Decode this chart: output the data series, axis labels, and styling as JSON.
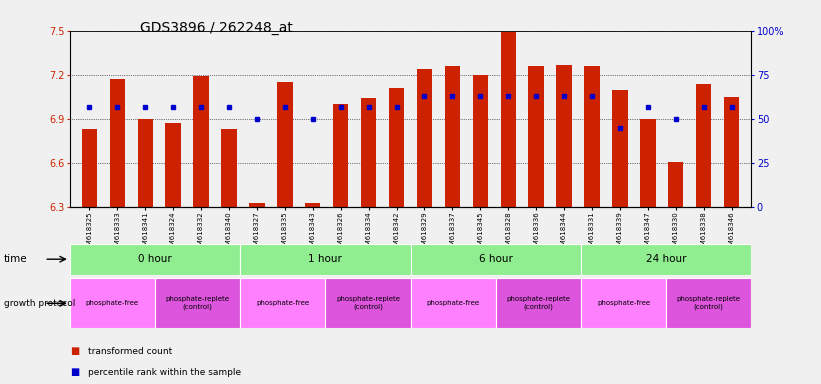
{
  "title": "GDS3896 / 262248_at",
  "samples": [
    "GSM618325",
    "GSM618333",
    "GSM618341",
    "GSM618324",
    "GSM618332",
    "GSM618340",
    "GSM618327",
    "GSM618335",
    "GSM618343",
    "GSM618326",
    "GSM618334",
    "GSM618342",
    "GSM618329",
    "GSM618337",
    "GSM618345",
    "GSM618328",
    "GSM618336",
    "GSM618344",
    "GSM618331",
    "GSM618339",
    "GSM618347",
    "GSM618330",
    "GSM618338",
    "GSM618346"
  ],
  "bar_values": [
    6.83,
    7.17,
    6.9,
    6.87,
    7.19,
    6.83,
    6.33,
    7.15,
    6.33,
    7.0,
    7.04,
    7.11,
    7.24,
    7.26,
    7.2,
    7.49,
    7.26,
    7.27,
    7.26,
    7.1,
    6.9,
    6.61,
    7.14,
    7.05
  ],
  "percentile_values": [
    57,
    57,
    57,
    57,
    57,
    57,
    50,
    57,
    50,
    57,
    57,
    57,
    63,
    63,
    63,
    63,
    63,
    63,
    63,
    45,
    57,
    50,
    57,
    57
  ],
  "time_groups": [
    {
      "label": "0 hour",
      "start": 0,
      "end": 6
    },
    {
      "label": "1 hour",
      "start": 6,
      "end": 12
    },
    {
      "label": "6 hour",
      "start": 12,
      "end": 18
    },
    {
      "label": "24 hour",
      "start": 18,
      "end": 24
    }
  ],
  "protocol_groups": [
    {
      "label": "phosphate-free",
      "start": 0,
      "end": 3,
      "color": "#ff80ff"
    },
    {
      "label": "phosphate-replete\n(control)",
      "start": 3,
      "end": 6,
      "color": "#dd55dd"
    },
    {
      "label": "phosphate-free",
      "start": 6,
      "end": 9,
      "color": "#ff80ff"
    },
    {
      "label": "phosphate-replete\n(control)",
      "start": 9,
      "end": 12,
      "color": "#dd55dd"
    },
    {
      "label": "phosphate-free",
      "start": 12,
      "end": 15,
      "color": "#ff80ff"
    },
    {
      "label": "phosphate-replete\n(control)",
      "start": 15,
      "end": 18,
      "color": "#dd55dd"
    },
    {
      "label": "phosphate-free",
      "start": 18,
      "end": 21,
      "color": "#ff80ff"
    },
    {
      "label": "phosphate-replete\n(control)",
      "start": 21,
      "end": 24,
      "color": "#dd55dd"
    }
  ],
  "ylim_left": [
    6.3,
    7.5
  ],
  "yticks_left": [
    6.3,
    6.6,
    6.9,
    7.2,
    7.5
  ],
  "ylim_right": [
    0,
    100
  ],
  "yticks_right": [
    0,
    25,
    50,
    75,
    100
  ],
  "yticklabels_right": [
    "0",
    "25",
    "50",
    "75",
    "100%"
  ],
  "bar_color": "#cc2200",
  "dot_color": "#0000cc",
  "background_color": "#f0f0f0",
  "time_row_color": "#90ee90",
  "title_fontsize": 10,
  "tick_fontsize": 7,
  "label_fontsize": 8
}
